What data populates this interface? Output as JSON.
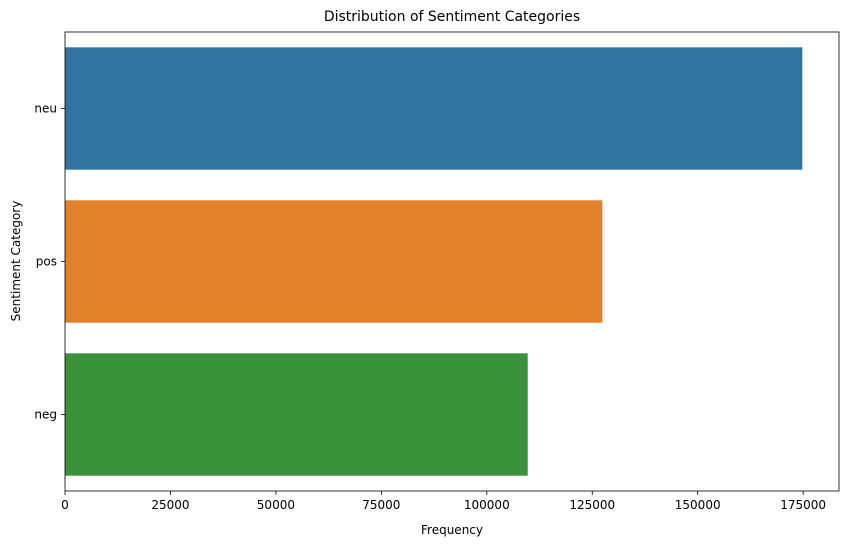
{
  "chart_data": {
    "type": "bar",
    "orientation": "horizontal",
    "title": "Distribution of Sentiment Categories",
    "xlabel": "Frequency",
    "ylabel": "Sentiment Category",
    "categories": [
      "neu",
      "pos",
      "neg"
    ],
    "values": [
      174800,
      127400,
      109700
    ],
    "colors": [
      "#3274a1",
      "#e1812c",
      "#3a923a"
    ],
    "xlim": [
      0,
      183500
    ],
    "xticks": [
      0,
      25000,
      50000,
      75000,
      100000,
      125000,
      150000,
      175000
    ],
    "xtick_labels": [
      "0",
      "25000",
      "50000",
      "75000",
      "100000",
      "125000",
      "150000",
      "175000"
    ],
    "grid": false,
    "legend": "none"
  }
}
